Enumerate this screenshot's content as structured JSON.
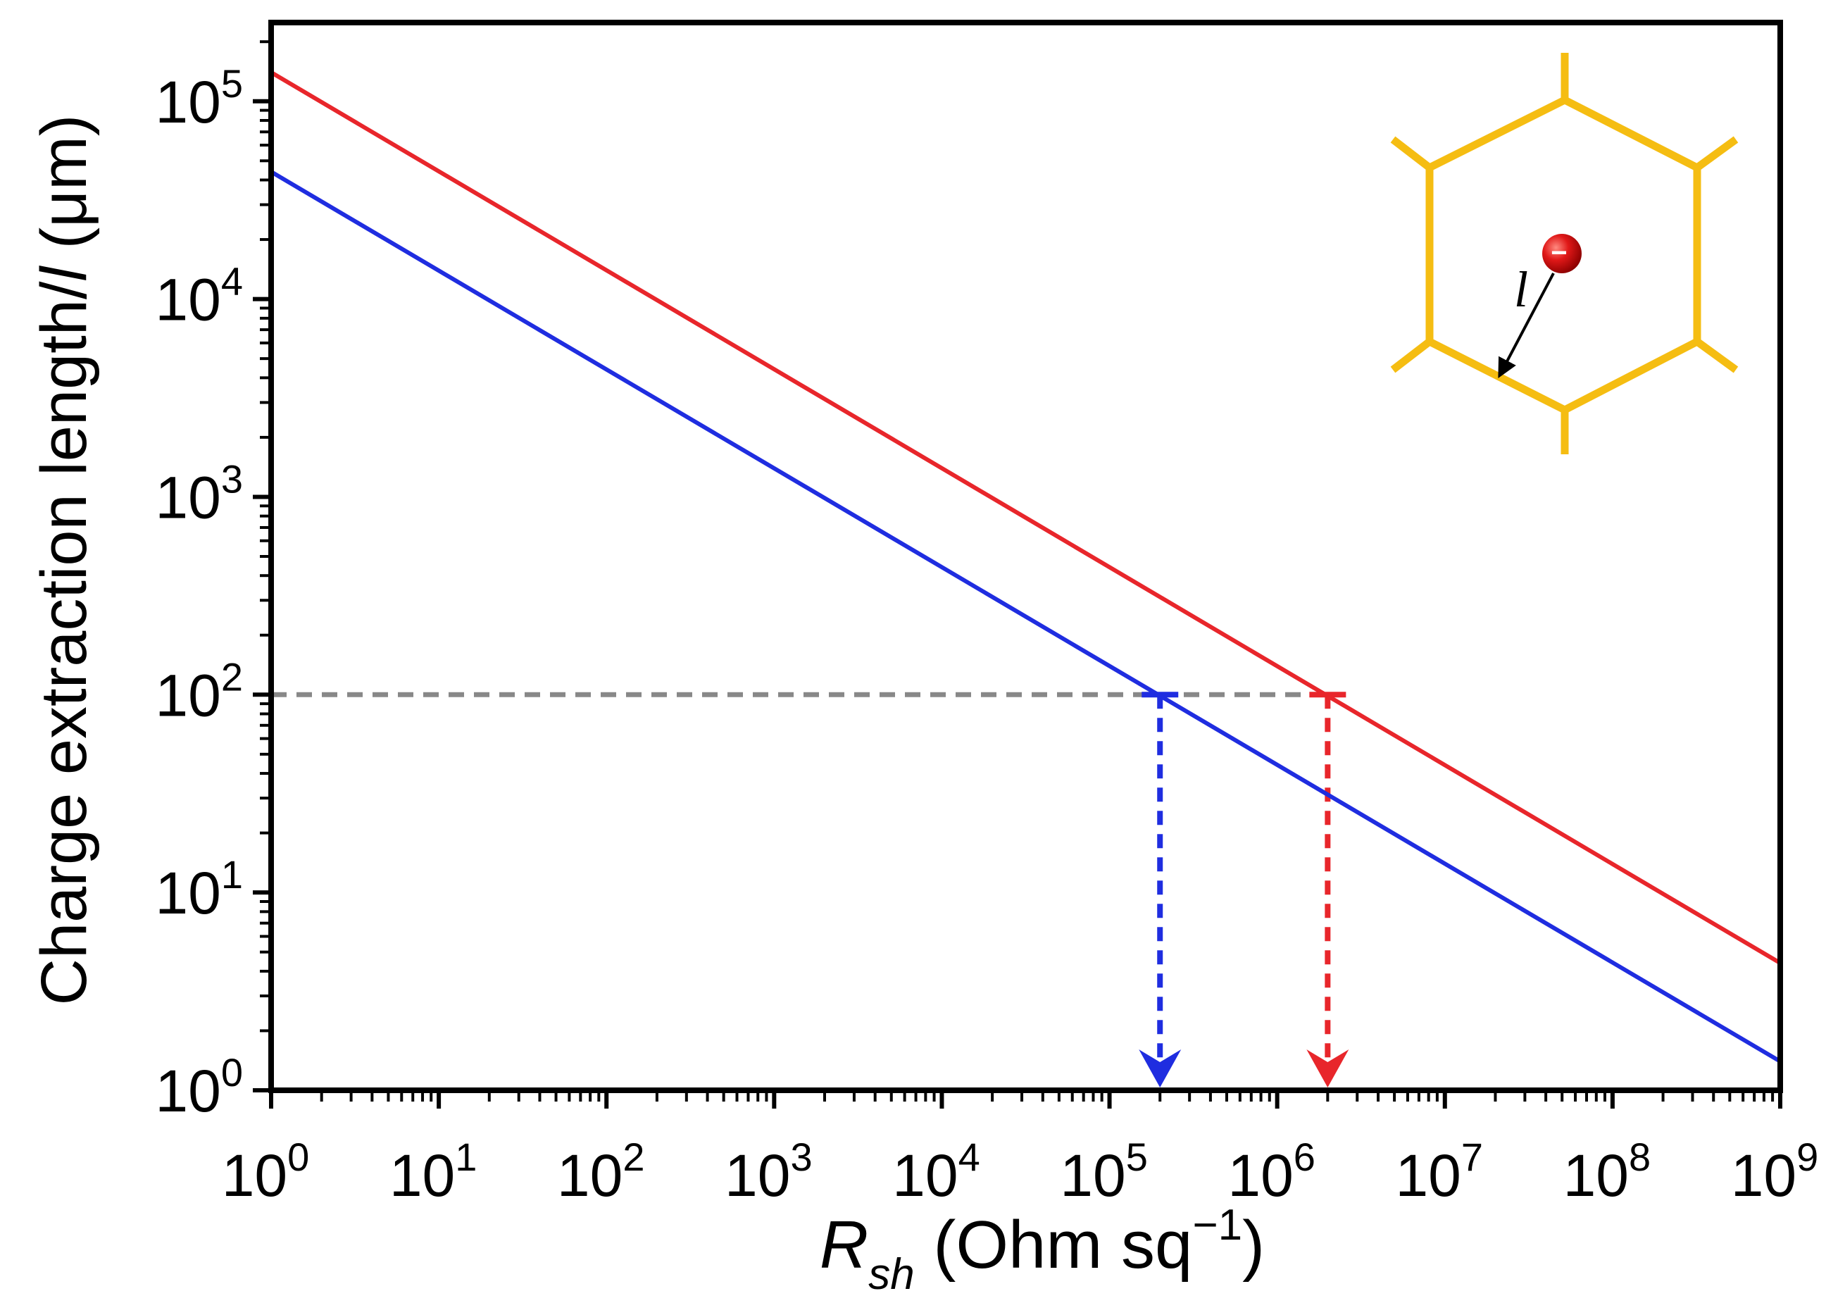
{
  "chart_data": {
    "type": "line",
    "title": "",
    "xlabel_main": "R",
    "xlabel_sub": "sh",
    "xlabel_unit_pre": " (Ohm sq",
    "xlabel_unit_sup": "−1",
    "xlabel_unit_post": ")",
    "ylabel_pre": "Charge extraction length/",
    "ylabel_italic": "l",
    "ylabel_post": " (μm)",
    "xscale": "log",
    "yscale": "log",
    "xlim": [
      1,
      1000000000
    ],
    "ylim": [
      1,
      250000
    ],
    "x_tick_exponents": [
      "0",
      "1",
      "2",
      "3",
      "4",
      "5",
      "6",
      "7",
      "8",
      "9"
    ],
    "y_tick_exponents": [
      "0",
      "1",
      "2",
      "3",
      "4",
      "5"
    ],
    "tick_base": "10",
    "series": [
      {
        "name": "red line",
        "color": "#e8262b",
        "x": [
          1,
          1000000000
        ],
        "y": [
          140000,
          4.4
        ]
      },
      {
        "name": "blue line",
        "color": "#1f2de0",
        "x": [
          1,
          1000000000
        ],
        "y": [
          44000,
          1.4
        ]
      }
    ],
    "annotations": {
      "threshold_line": {
        "y": 100,
        "x_from": 1,
        "x_to": 2000000,
        "color": "#888888",
        "style": "dashed"
      },
      "blue_drop": {
        "x": 200000,
        "y_from": 100,
        "y_to": 1,
        "color": "#1f2de0",
        "style": "dashed-arrow"
      },
      "red_drop": {
        "x": 2000000,
        "y_from": 100,
        "y_to": 1,
        "color": "#e8262b",
        "style": "dashed-arrow"
      }
    },
    "inset": {
      "description_label": "l",
      "hexagon_color": "#f5bd12",
      "charge_color": "#e01818",
      "charge_sign": "−"
    }
  }
}
